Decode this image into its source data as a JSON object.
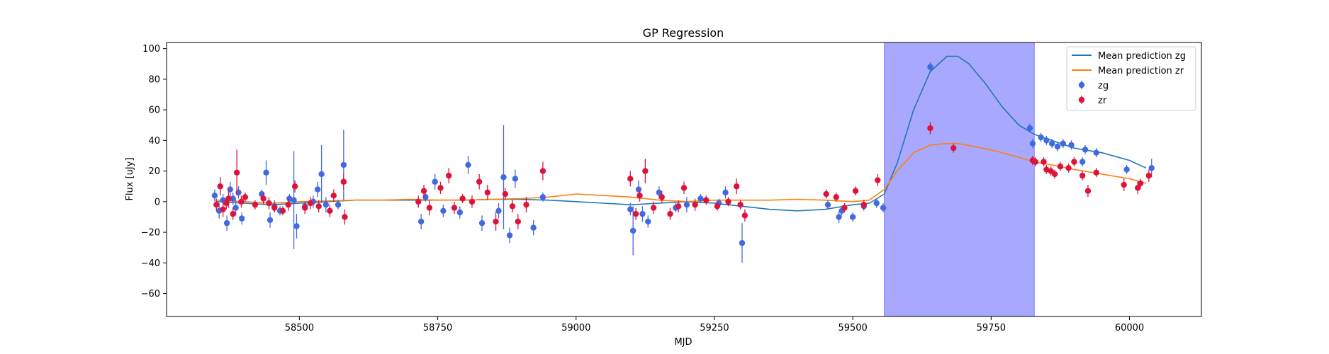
{
  "chart_data": {
    "type": "scatter",
    "title": "GP Regression",
    "xlabel": "MJD",
    "ylabel": "Flux [uJy]",
    "xlim": [
      58260,
      60130
    ],
    "ylim": [
      -75,
      104
    ],
    "xticks": [
      58500,
      58750,
      59000,
      59250,
      59500,
      59750,
      60000
    ],
    "yticks": [
      -60,
      -40,
      -20,
      0,
      20,
      40,
      60,
      80,
      100
    ],
    "grid": false,
    "legend_position": "top-right",
    "shaded_region": {
      "x0": 59557,
      "x1": 59828,
      "color": "#a8a8ff"
    },
    "lines": [
      {
        "name": "Mean prediction zg",
        "color": "#1f77b4",
        "x": [
          58350,
          58400,
          58450,
          58500,
          58550,
          58600,
          58650,
          58700,
          58750,
          58800,
          58850,
          58900,
          58950,
          59000,
          59050,
          59100,
          59150,
          59200,
          59250,
          59300,
          59350,
          59400,
          59450,
          59500,
          59530,
          59557,
          59580,
          59610,
          59640,
          59670,
          59690,
          59710,
          59740,
          59770,
          59800,
          59828,
          59860,
          59900,
          59950,
          60000,
          60030
        ],
        "y": [
          0,
          -1,
          -2,
          -1,
          0,
          1,
          1,
          1,
          1,
          1,
          1.5,
          1.5,
          1,
          0,
          -1,
          -2,
          -1,
          0,
          -1,
          -3,
          -5,
          -6,
          -5,
          -2,
          -1,
          5,
          25,
          60,
          85,
          95,
          95,
          90,
          77,
          62,
          50,
          44,
          40,
          35,
          32,
          27,
          22
        ]
      },
      {
        "name": "Mean prediction zr",
        "color": "#ff7f0e",
        "x": [
          58350,
          58400,
          58450,
          58500,
          58550,
          58600,
          58650,
          58700,
          58750,
          58800,
          58850,
          58900,
          58950,
          59000,
          59050,
          59100,
          59150,
          59200,
          59250,
          59300,
          59350,
          59400,
          59450,
          59500,
          59530,
          59557,
          59580,
          59610,
          59640,
          59670,
          59690,
          59720,
          59760,
          59800,
          59828,
          59860,
          59900,
          59950,
          60000,
          60030
        ],
        "y": [
          1,
          0,
          -1,
          0,
          0.5,
          1,
          1,
          1.5,
          1,
          1,
          1.5,
          2,
          3,
          5,
          4,
          3,
          1,
          0,
          1,
          1,
          1,
          1.5,
          1,
          0,
          1,
          8,
          20,
          32,
          37,
          38,
          38,
          36,
          33,
          29,
          26,
          24,
          21,
          18,
          15,
          12
        ]
      }
    ],
    "series": [
      {
        "name": "zg",
        "color": "#4169e1",
        "points": [
          [
            58347,
            4,
            4
          ],
          [
            58355,
            -6,
            5
          ],
          [
            58362,
            1,
            4
          ],
          [
            58369,
            -14,
            5
          ],
          [
            58375,
            8,
            5
          ],
          [
            58380,
            2,
            4
          ],
          [
            58385,
            -4,
            5
          ],
          [
            58390,
            6,
            4
          ],
          [
            58396,
            -11,
            4
          ],
          [
            58432,
            5,
            3
          ],
          [
            58440,
            19,
            8
          ],
          [
            58447,
            -12,
            5
          ],
          [
            58455,
            -3,
            4
          ],
          [
            58465,
            -6,
            3
          ],
          [
            58482,
            2,
            3
          ],
          [
            58490,
            1,
            32
          ],
          [
            58495,
            -16,
            8
          ],
          [
            58510,
            -3,
            3
          ],
          [
            58525,
            0,
            4
          ],
          [
            58533,
            8,
            5
          ],
          [
            58540,
            18,
            19
          ],
          [
            58548,
            -2,
            5
          ],
          [
            58570,
            -2,
            3
          ],
          [
            58580,
            24,
            23
          ],
          [
            58720,
            -13,
            5
          ],
          [
            58728,
            3,
            3
          ],
          [
            58745,
            13,
            5
          ],
          [
            58760,
            -6,
            4
          ],
          [
            58790,
            -7,
            4
          ],
          [
            58805,
            24,
            6
          ],
          [
            58830,
            -14,
            5
          ],
          [
            58860,
            -6,
            5
          ],
          [
            58869,
            16,
            34
          ],
          [
            58880,
            -22,
            5
          ],
          [
            58890,
            15,
            6
          ],
          [
            58923,
            -17,
            5
          ],
          [
            58940,
            3,
            3
          ],
          [
            59098,
            -5,
            4
          ],
          [
            59103,
            -19,
            16
          ],
          [
            59113,
            8,
            6
          ],
          [
            59120,
            -8,
            5
          ],
          [
            59130,
            -13,
            4
          ],
          [
            59150,
            6,
            4
          ],
          [
            59180,
            -4,
            3
          ],
          [
            59200,
            -2,
            5
          ],
          [
            59225,
            2,
            3
          ],
          [
            59258,
            -1,
            3
          ],
          [
            59270,
            6,
            4
          ],
          [
            59300,
            -27,
            13
          ],
          [
            59455,
            -2,
            3
          ],
          [
            59475,
            -10,
            4
          ],
          [
            59480,
            -6,
            3
          ],
          [
            59500,
            -10,
            3
          ],
          [
            59520,
            -3,
            3
          ],
          [
            59543,
            -1,
            3
          ],
          [
            59555,
            -4,
            3
          ],
          [
            59640,
            88,
            3
          ],
          [
            59820,
            48,
            3
          ],
          [
            59825,
            38,
            3
          ],
          [
            59840,
            42,
            3
          ],
          [
            59850,
            40,
            3
          ],
          [
            59860,
            38,
            3
          ],
          [
            59870,
            36,
            3
          ],
          [
            59880,
            38,
            3
          ],
          [
            59895,
            37,
            3
          ],
          [
            59915,
            26,
            3
          ],
          [
            59920,
            34,
            3
          ],
          [
            59940,
            32,
            3
          ],
          [
            59995,
            21,
            3
          ],
          [
            60040,
            22,
            6
          ]
        ]
      },
      {
        "name": "zr",
        "color": "#dc143c",
        "points": [
          [
            58350,
            -2,
            4
          ],
          [
            58357,
            10,
            6
          ],
          [
            58362,
            -5,
            5
          ],
          [
            58368,
            -1,
            4
          ],
          [
            58372,
            2,
            6
          ],
          [
            58380,
            -8,
            4
          ],
          [
            58387,
            19,
            15
          ],
          [
            58395,
            0,
            4
          ],
          [
            58402,
            3,
            3
          ],
          [
            58420,
            -2,
            3
          ],
          [
            58435,
            2,
            4
          ],
          [
            58445,
            -1,
            4
          ],
          [
            58455,
            -4,
            3
          ],
          [
            58470,
            -6,
            3
          ],
          [
            58480,
            -2,
            4
          ],
          [
            58492,
            10,
            4
          ],
          [
            58510,
            -4,
            4
          ],
          [
            58520,
            -1,
            4
          ],
          [
            58535,
            -3,
            4
          ],
          [
            58555,
            -6,
            4
          ],
          [
            58562,
            4,
            4
          ],
          [
            58580,
            13,
            5
          ],
          [
            58582,
            -10,
            5
          ],
          [
            58715,
            0,
            4
          ],
          [
            58725,
            7,
            4
          ],
          [
            58735,
            -4,
            5
          ],
          [
            58755,
            9,
            4
          ],
          [
            58770,
            17,
            5
          ],
          [
            58780,
            -4,
            4
          ],
          [
            58795,
            2,
            3
          ],
          [
            58812,
            0,
            4
          ],
          [
            58825,
            13,
            5
          ],
          [
            58840,
            6,
            5
          ],
          [
            58855,
            -13,
            6
          ],
          [
            58872,
            5,
            4
          ],
          [
            58885,
            -3,
            4
          ],
          [
            58895,
            -13,
            5
          ],
          [
            58910,
            -2,
            5
          ],
          [
            58940,
            20,
            6
          ],
          [
            59098,
            15,
            5
          ],
          [
            59108,
            -8,
            4
          ],
          [
            59115,
            4,
            4
          ],
          [
            59125,
            20,
            8
          ],
          [
            59140,
            -4,
            4
          ],
          [
            59155,
            3,
            4
          ],
          [
            59170,
            -8,
            4
          ],
          [
            59185,
            -3,
            4
          ],
          [
            59195,
            9,
            4
          ],
          [
            59215,
            -2,
            4
          ],
          [
            59235,
            1,
            3
          ],
          [
            59255,
            -3,
            3
          ],
          [
            59275,
            0,
            3
          ],
          [
            59290,
            10,
            5
          ],
          [
            59297,
            -2,
            3
          ],
          [
            59305,
            -9,
            4
          ],
          [
            59452,
            5,
            3
          ],
          [
            59470,
            3,
            3
          ],
          [
            59485,
            -4,
            3
          ],
          [
            59505,
            7,
            3
          ],
          [
            59520,
            -2,
            3
          ],
          [
            59545,
            14,
            4
          ],
          [
            59640,
            48,
            4
          ],
          [
            59682,
            35,
            3
          ],
          [
            59825,
            27,
            3
          ],
          [
            59830,
            26,
            3
          ],
          [
            59845,
            26,
            3
          ],
          [
            59850,
            21,
            3
          ],
          [
            59858,
            20,
            3
          ],
          [
            59865,
            18,
            3
          ],
          [
            59875,
            23,
            3
          ],
          [
            59890,
            22,
            3
          ],
          [
            59900,
            26,
            3
          ],
          [
            59915,
            17,
            3
          ],
          [
            59925,
            7,
            4
          ],
          [
            59940,
            19,
            3
          ],
          [
            59990,
            11,
            4
          ],
          [
            60015,
            9,
            4
          ],
          [
            60020,
            12,
            3
          ],
          [
            60035,
            17,
            4
          ]
        ]
      }
    ]
  }
}
